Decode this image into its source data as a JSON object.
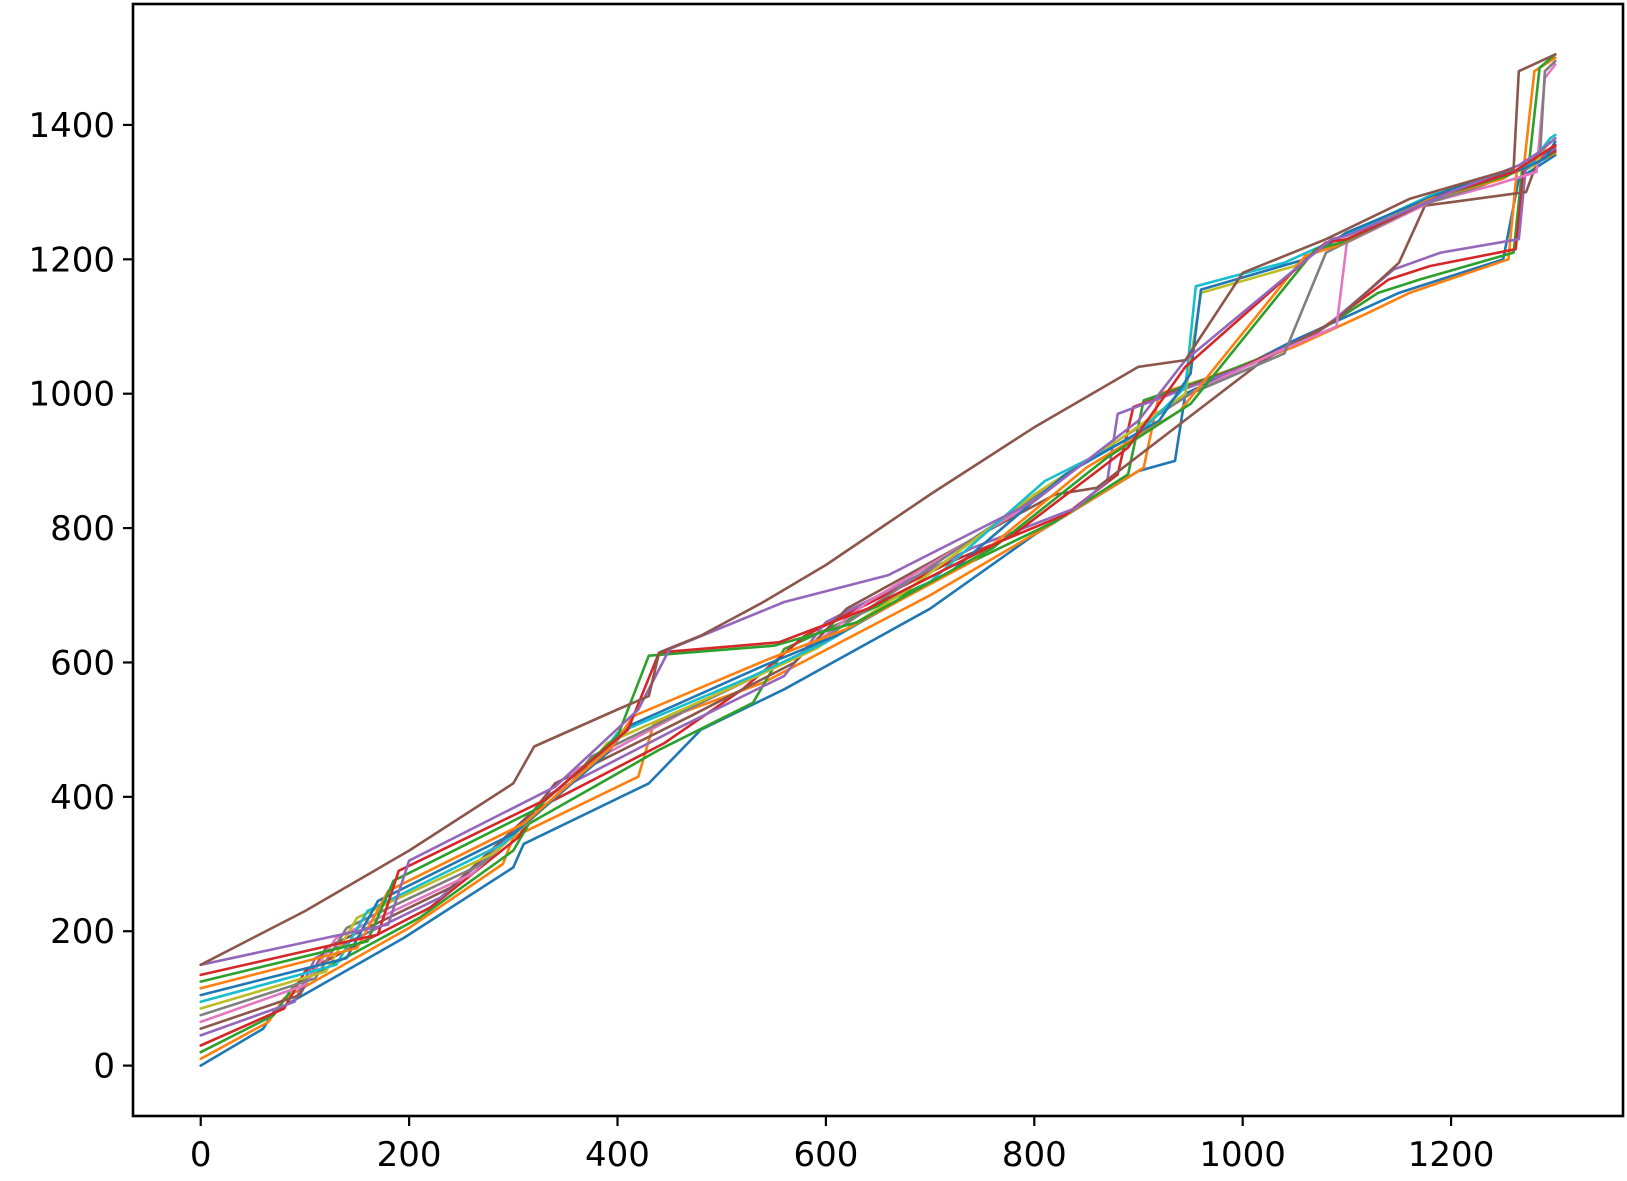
{
  "chart_data": {
    "type": "line",
    "title": "",
    "xlabel": "",
    "ylabel": "",
    "xlim": [
      -65,
      1365
    ],
    "ylim": [
      -75,
      1580
    ],
    "xticks": [
      0,
      200,
      400,
      600,
      800,
      1000,
      1200
    ],
    "xtick_labels": [
      "0",
      "200",
      "400",
      "600",
      "800",
      "1000",
      "1200"
    ],
    "yticks": [
      0,
      200,
      400,
      600,
      800,
      1000,
      1200,
      1400
    ],
    "ytick_labels": [
      "0",
      "200",
      "400",
      "600",
      "800",
      "1000",
      "1200",
      "1400"
    ],
    "grid": false,
    "legend": "none",
    "color_cycle": [
      "#1f77b4",
      "#ff7f0e",
      "#2ca02c",
      "#d62728",
      "#9467bd",
      "#8c564b",
      "#e377c2",
      "#7f7f7f",
      "#bcbd22",
      "#17becf"
    ],
    "series": [
      {
        "x": [
          0,
          60,
          70,
          195,
          300,
          310,
          430,
          480,
          560,
          700,
          800,
          900,
          935,
          945,
          1000,
          1050,
          1150,
          1250,
          1265,
          1300
        ],
        "y": [
          0,
          55,
          80,
          190,
          295,
          330,
          420,
          500,
          560,
          680,
          790,
          885,
          900,
          1000,
          1040,
          1080,
          1150,
          1200,
          1320,
          1355
        ]
      },
      {
        "x": [
          0,
          65,
          80,
          200,
          290,
          300,
          420,
          435,
          540,
          700,
          810,
          905,
          920,
          960,
          1050,
          1120,
          1160,
          1255,
          1263,
          1300
        ],
        "y": [
          10,
          65,
          100,
          205,
          300,
          340,
          430,
          510,
          570,
          700,
          800,
          890,
          1000,
          1020,
          1070,
          1120,
          1150,
          1200,
          1330,
          1358
        ]
      },
      {
        "x": [
          0,
          70,
          90,
          210,
          300,
          315,
          440,
          530,
          560,
          700,
          820,
          890,
          905,
          980,
          1060,
          1130,
          1170,
          1260,
          1268,
          1300
        ],
        "y": [
          20,
          75,
          120,
          220,
          320,
          360,
          470,
          540,
          620,
          720,
          810,
          880,
          990,
          1030,
          1080,
          1150,
          1170,
          1210,
          1330,
          1360
        ]
      },
      {
        "x": [
          0,
          80,
          100,
          220,
          305,
          320,
          445,
          520,
          580,
          720,
          830,
          880,
          895,
          1000,
          1070,
          1140,
          1180,
          1262,
          1270,
          1300
        ],
        "y": [
          30,
          85,
          140,
          235,
          340,
          380,
          480,
          560,
          640,
          750,
          820,
          880,
          980,
          1040,
          1090,
          1170,
          1190,
          1215,
          1335,
          1362
        ]
      },
      {
        "x": [
          0,
          90,
          110,
          230,
          310,
          330,
          455,
          560,
          600,
          740,
          840,
          870,
          880,
          1010,
          1080,
          1145,
          1190,
          1265,
          1272,
          1300
        ],
        "y": [
          45,
          95,
          160,
          250,
          360,
          400,
          500,
          580,
          660,
          770,
          830,
          870,
          970,
          1045,
          1100,
          1185,
          1210,
          1230,
          1340,
          1365
        ]
      },
      {
        "x": [
          0,
          95,
          120,
          240,
          320,
          340,
          470,
          570,
          620,
          760,
          820,
          860,
          1020,
          1090,
          1150,
          1175,
          1200,
          1272,
          1285,
          1300
        ],
        "y": [
          55,
          105,
          175,
          265,
          380,
          420,
          520,
          600,
          680,
          800,
          850,
          860,
          1050,
          1110,
          1195,
          1280,
          1285,
          1300,
          1355,
          1368
        ]
      },
      {
        "x": [
          0,
          100,
          130,
          260,
          340,
          360,
          480,
          575,
          640,
          780,
          850,
          955,
          1030,
          1090,
          1100,
          1180,
          1240,
          1282,
          1290,
          1300
        ],
        "y": [
          65,
          120,
          190,
          285,
          400,
          440,
          540,
          610,
          690,
          820,
          900,
          1005,
          1060,
          1100,
          1225,
          1285,
          1310,
          1330,
          1470,
          1490
        ]
      },
      {
        "x": [
          0,
          110,
          140,
          270,
          355,
          375,
          500,
          578,
          660,
          790,
          860,
          950,
          1040,
          1080,
          1170,
          1230,
          1270,
          1285,
          1290,
          1300
        ],
        "y": [
          75,
          130,
          205,
          300,
          420,
          460,
          555,
          615,
          700,
          835,
          910,
          1000,
          1060,
          1210,
          1280,
          1310,
          1335,
          1345,
          1480,
          1495
        ]
      },
      {
        "x": [
          0,
          120,
          150,
          280,
          370,
          390,
          520,
          590,
          680,
          800,
          880,
          945,
          960,
          1050,
          1100,
          1200,
          1260,
          1280,
          1292,
          1300
        ],
        "y": [
          85,
          140,
          220,
          315,
          440,
          480,
          570,
          620,
          710,
          850,
          930,
          1000,
          1150,
          1190,
          1240,
          1300,
          1330,
          1340,
          1370,
          1380
        ]
      },
      {
        "x": [
          0,
          130,
          160,
          290,
          380,
          400,
          530,
          600,
          700,
          810,
          900,
          945,
          955,
          1040,
          1090,
          1180,
          1250,
          1275,
          1295,
          1300
        ],
        "y": [
          95,
          150,
          230,
          330,
          455,
          495,
          580,
          630,
          720,
          870,
          940,
          1010,
          1160,
          1195,
          1230,
          1295,
          1325,
          1340,
          1380,
          1385
        ]
      },
      {
        "x": [
          0,
          140,
          170,
          300,
          390,
          410,
          540,
          610,
          720,
          830,
          920,
          950,
          960,
          1060,
          1100,
          1200,
          1270,
          1290,
          1300
        ],
        "y": [
          105,
          160,
          245,
          345,
          465,
          505,
          595,
          640,
          735,
          880,
          960,
          1030,
          1155,
          1200,
          1240,
          1305,
          1335,
          1350,
          1375
        ]
      },
      {
        "x": [
          0,
          150,
          180,
          310,
          395,
          415,
          545,
          620,
          740,
          850,
          940,
          1060,
          1090,
          1180,
          1250,
          1270,
          1280,
          1300
        ],
        "y": [
          115,
          175,
          260,
          360,
          475,
          520,
          605,
          650,
          750,
          890,
          975,
          1205,
          1220,
          1290,
          1320,
          1340,
          1480,
          1500
        ]
      },
      {
        "x": [
          0,
          160,
          185,
          320,
          400,
          430,
          550,
          630,
          760,
          870,
          950,
          1070,
          1095,
          1190,
          1255,
          1275,
          1285,
          1300
        ],
        "y": [
          125,
          185,
          275,
          380,
          490,
          610,
          625,
          660,
          770,
          905,
          985,
          1215,
          1225,
          1295,
          1325,
          1345,
          1485,
          1505
        ]
      },
      {
        "x": [
          0,
          170,
          190,
          330,
          410,
          440,
          555,
          640,
          780,
          890,
          945,
          1080,
          1100,
          1195,
          1260,
          1280,
          1300
        ],
        "y": [
          135,
          195,
          290,
          395,
          500,
          615,
          630,
          680,
          790,
          920,
          1040,
          1225,
          1230,
          1298,
          1330,
          1350,
          1370
        ]
      },
      {
        "x": [
          0,
          180,
          200,
          340,
          420,
          450,
          560,
          660,
          800,
          900,
          945,
          1085,
          1100,
          1200,
          1265,
          1285,
          1300
        ],
        "y": [
          150,
          210,
          305,
          415,
          530,
          620,
          690,
          730,
          840,
          960,
          1050,
          1230,
          1235,
          1300,
          1340,
          1360,
          1380
        ]
      },
      {
        "x": [
          0,
          100,
          200,
          300,
          320,
          400,
          430,
          440,
          480,
          540,
          600,
          700,
          800,
          900,
          945,
          1000,
          1080,
          1160,
          1260,
          1265,
          1300
        ],
        "y": [
          150,
          230,
          320,
          420,
          475,
          530,
          550,
          615,
          640,
          690,
          745,
          850,
          950,
          1040,
          1050,
          1180,
          1230,
          1290,
          1335,
          1480,
          1505
        ]
      }
    ]
  }
}
